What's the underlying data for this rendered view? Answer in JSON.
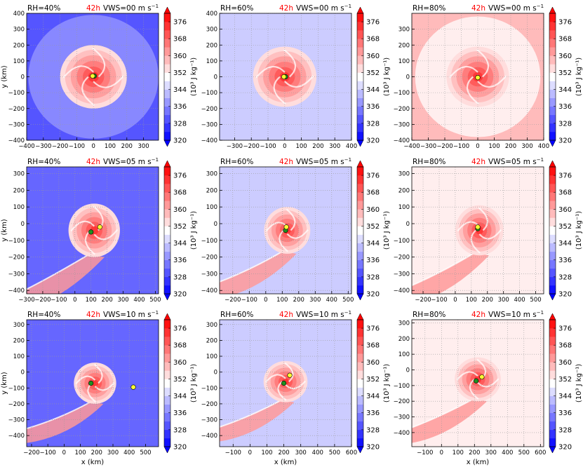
{
  "figure": {
    "panels": [
      {
        "row": 0,
        "col": 0,
        "rh_label": "RH=40%",
        "time_label": "42h",
        "vws_label": "VWS=00 m s",
        "show_xlabel": false,
        "show_ylabel": true
      },
      {
        "row": 0,
        "col": 1,
        "rh_label": "RH=60%",
        "time_label": "42h",
        "vws_label": "VWS=00 m s",
        "show_xlabel": false,
        "show_ylabel": false
      },
      {
        "row": 0,
        "col": 2,
        "rh_label": "RH=80%",
        "time_label": "42h",
        "vws_label": "VWS=00 m s",
        "show_xlabel": false,
        "show_ylabel": false
      },
      {
        "row": 1,
        "col": 0,
        "rh_label": "RH=40%",
        "time_label": "42h",
        "vws_label": "VWS=05 m s",
        "show_xlabel": false,
        "show_ylabel": true
      },
      {
        "row": 1,
        "col": 1,
        "rh_label": "RH=60%",
        "time_label": "42h",
        "vws_label": "VWS=05 m s",
        "show_xlabel": false,
        "show_ylabel": false
      },
      {
        "row": 1,
        "col": 2,
        "rh_label": "RH=80%",
        "time_label": "42h",
        "vws_label": "VWS=05 m s",
        "show_xlabel": false,
        "show_ylabel": false
      },
      {
        "row": 2,
        "col": 0,
        "rh_label": "RH=40%",
        "time_label": "42h",
        "vws_label": "VWS=10 m s",
        "show_xlabel": true,
        "show_ylabel": true
      },
      {
        "row": 2,
        "col": 1,
        "rh_label": "RH=60%",
        "time_label": "42h",
        "vws_label": "VWS=10 m s",
        "show_xlabel": true,
        "show_ylabel": false
      },
      {
        "row": 2,
        "col": 2,
        "rh_label": "RH=80%",
        "time_label": "42h",
        "vws_label": "VWS=10 m s",
        "show_xlabel": true,
        "show_ylabel": false
      }
    ],
    "colorbar": {
      "ticks": [
        "320",
        "328",
        "336",
        "344",
        "352",
        "360",
        "368",
        "376"
      ],
      "label": "(10³ J kg⁻¹)",
      "levels": [
        320,
        324,
        328,
        332,
        336,
        340,
        344,
        348,
        352,
        356,
        360,
        364,
        368,
        372,
        376,
        380
      ]
    },
    "unit_superscript": "−1",
    "axis_labels": {
      "x": "x (km)",
      "y": "y (km)"
    },
    "colors": {
      "time": "#ff0000",
      "green_marker": "#1f8f1f",
      "yellow_marker": "#ffff33"
    }
  },
  "chart_data": [
    {
      "type": "heatmap",
      "title": "RH=40% 42h VWS=00 m s-1",
      "xlabel": "",
      "ylabel": "y (km)",
      "xlim": [
        -400,
        390
      ],
      "ylim": [
        -400,
        400
      ],
      "xticks": [
        -400,
        -300,
        -200,
        -100,
        0,
        100,
        200,
        300
      ],
      "yticks": [
        -400,
        -300,
        -200,
        -100,
        0,
        100,
        200,
        300,
        400
      ],
      "background_value": 336,
      "outer_value": 330,
      "outer_radius": 390,
      "storm": {
        "cx": 0,
        "cy": 0,
        "radius": 200,
        "tail": false
      },
      "markers": {
        "green": [
          5,
          5
        ],
        "yellow": [
          -5,
          5
        ]
      },
      "colorbar": {
        "min": 320,
        "max": 380
      }
    },
    {
      "type": "heatmap",
      "title": "RH=60% 42h VWS=00 m s-1",
      "xlabel": "",
      "ylabel": "",
      "xlim": [
        -390,
        400
      ],
      "ylim": [
        -400,
        400
      ],
      "xticks": [
        -300,
        -200,
        -100,
        0,
        100,
        200,
        300,
        400
      ],
      "yticks": [
        -400,
        -300,
        -200,
        -100,
        0,
        100,
        200,
        300,
        400
      ],
      "background_value": 344,
      "storm": {
        "cx": 0,
        "cy": 0,
        "radius": 190,
        "tail": false
      },
      "markers": {
        "green": [
          5,
          0
        ],
        "yellow": [
          -5,
          0
        ]
      },
      "colorbar": {
        "min": 320,
        "max": 380
      }
    },
    {
      "type": "heatmap",
      "title": "RH=80% 42h VWS=00 m s-1",
      "xlabel": "",
      "ylabel": "",
      "xlim": [
        -400,
        400
      ],
      "ylim": [
        -400,
        400
      ],
      "xticks": [
        -400,
        -300,
        -200,
        -100,
        0,
        100,
        200,
        300,
        400
      ],
      "yticks": [
        -400,
        -300,
        -200,
        -100,
        0,
        100,
        200,
        300
      ],
      "background_value": 358,
      "inner_bg_value": 352,
      "inner_radius": 380,
      "storm": {
        "cx": 0,
        "cy": 0,
        "radius": 190,
        "tail": false
      },
      "markers": {
        "green": [
          0,
          -5
        ],
        "yellow": [
          0,
          -5
        ]
      },
      "colorbar": {
        "min": 320,
        "max": 380
      }
    },
    {
      "type": "heatmap",
      "title": "RH=40% 42h VWS=05 m s-1",
      "xlabel": "",
      "ylabel": "y (km)",
      "xlim": [
        -300,
        520
      ],
      "ylim": [
        -420,
        340
      ],
      "xticks": [
        -300,
        -200,
        -100,
        0,
        100,
        200,
        300,
        400,
        500
      ],
      "yticks": [
        -400,
        -300,
        -200,
        -100,
        0,
        100,
        200,
        300
      ],
      "background_value": 332,
      "storm": {
        "cx": 120,
        "cy": -40,
        "radius": 160,
        "tail": true
      },
      "markers": {
        "green": [
          100,
          -50
        ],
        "yellow": [
          155,
          -20
        ]
      },
      "colorbar": {
        "min": 320,
        "max": 380
      }
    },
    {
      "type": "heatmap",
      "title": "RH=60% 42h VWS=05 m s-1",
      "xlabel": "",
      "ylabel": "",
      "xlim": [
        -280,
        520
      ],
      "ylim": [
        -420,
        340
      ],
      "xticks": [
        -200,
        -100,
        0,
        100,
        200,
        300,
        400,
        500
      ],
      "yticks": [
        -400,
        -300,
        -200,
        -100,
        0,
        100,
        200,
        300
      ],
      "background_value": 344,
      "storm": {
        "cx": 130,
        "cy": -40,
        "radius": 140,
        "tail": true
      },
      "markers": {
        "green": [
          120,
          -40
        ],
        "yellow": [
          125,
          -20
        ]
      },
      "colorbar": {
        "min": 320,
        "max": 380
      }
    },
    {
      "type": "heatmap",
      "title": "RH=80% 42h VWS=05 m s-1",
      "xlabel": "",
      "ylabel": "",
      "xlim": [
        -270,
        550
      ],
      "ylim": [
        -420,
        340
      ],
      "xticks": [
        -200,
        -100,
        0,
        100,
        200,
        300,
        400,
        500
      ],
      "yticks": [
        -400,
        -300,
        -200,
        -100,
        0,
        100,
        200,
        300
      ],
      "background_value": 352,
      "storm": {
        "cx": 150,
        "cy": -40,
        "radius": 150,
        "tail": true
      },
      "markers": {
        "green": [
          140,
          -30
        ],
        "yellow": [
          140,
          -20
        ]
      },
      "colorbar": {
        "min": 320,
        "max": 380
      }
    },
    {
      "type": "heatmap",
      "title": "RH=40% 42h VWS=10 m s-1",
      "xlabel": "x (km)",
      "ylabel": "y (km)",
      "xlim": [
        -230,
        580
      ],
      "ylim": [
        -470,
        330
      ],
      "xticks": [
        -200,
        -100,
        0,
        100,
        200,
        300,
        400,
        500
      ],
      "yticks": [
        -400,
        -300,
        -200,
        -100,
        0,
        100,
        200,
        300
      ],
      "background_value": 332,
      "storm": {
        "cx": 190,
        "cy": -70,
        "radius": 130,
        "tail": true
      },
      "markers": {
        "green": [
          165,
          -70
        ],
        "yellow": [
          425,
          -95
        ]
      },
      "colorbar": {
        "min": 320,
        "max": 380
      }
    },
    {
      "type": "heatmap",
      "title": "RH=60% 42h VWS=10 m s-1",
      "xlabel": "x (km)",
      "ylabel": "",
      "xlim": [
        -180,
        600
      ],
      "ylim": [
        -470,
        330
      ],
      "xticks": [
        -100,
        0,
        100,
        200,
        300,
        400,
        500,
        600
      ],
      "yticks": [
        -400,
        -300,
        -200,
        -100,
        0,
        100,
        200,
        300
      ],
      "background_value": 344,
      "storm": {
        "cx": 210,
        "cy": -60,
        "radius": 130,
        "tail": true
      },
      "markers": {
        "green": [
          200,
          -70
        ],
        "yellow": [
          235,
          -20
        ]
      },
      "colorbar": {
        "min": 320,
        "max": 380
      }
    },
    {
      "type": "heatmap",
      "title": "RH=80% 42h VWS=10 m s-1",
      "xlabel": "x (km)",
      "ylabel": "",
      "xlim": [
        -180,
        620
      ],
      "ylim": [
        -490,
        320
      ],
      "xticks": [
        -100,
        0,
        100,
        200,
        300,
        400,
        500,
        600
      ],
      "yticks": [
        -400,
        -300,
        -200,
        -100,
        0,
        100,
        200,
        300
      ],
      "background_value": 352,
      "storm": {
        "cx": 220,
        "cy": -60,
        "radius": 140,
        "tail": true
      },
      "markers": {
        "green": [
          210,
          -70
        ],
        "yellow": [
          245,
          -45
        ]
      },
      "colorbar": {
        "min": 320,
        "max": 380
      }
    }
  ]
}
